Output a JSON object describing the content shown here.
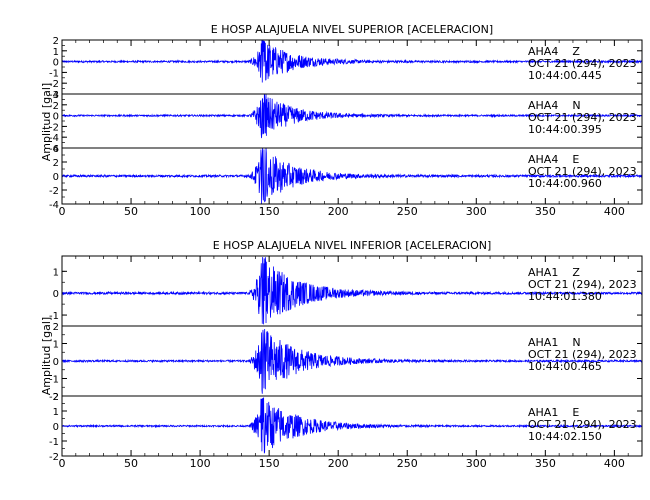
{
  "chart_data": [
    {
      "type": "line",
      "title": "E HOSP ALAJUELA NIVEL SUPERIOR [ACELERACION]",
      "ylabel": "Amplitud [gal]",
      "xlim": [
        0,
        420
      ],
      "xticks": [
        0,
        50,
        100,
        150,
        200,
        250,
        300,
        350,
        400
      ],
      "line_color": "#0000ff",
      "grid": false,
      "traces": [
        {
          "station": "AHA4",
          "component": "Z",
          "date": "OCT 21 (294), 2023",
          "time": "10:44:00.445",
          "ylim": [
            -3,
            2
          ],
          "yticks": [
            2,
            1,
            0,
            -1,
            -2,
            -3
          ],
          "baseline_noise": 0.08,
          "event_onset": 135,
          "peak_time": 146,
          "peak_amplitude": 2.0,
          "coda_end": 215
        },
        {
          "station": "AHA4",
          "component": "N",
          "date": "OCT 21 (294), 2023",
          "time": "10:44:00.395",
          "ylim": [
            -6,
            4
          ],
          "yticks": [
            4,
            2,
            0,
            -2,
            -4,
            -6
          ],
          "baseline_noise": 0.15,
          "event_onset": 135,
          "peak_time": 146,
          "peak_amplitude": 4.0,
          "coda_end": 215
        },
        {
          "station": "AHA4",
          "component": "E",
          "date": "OCT 21 (294), 2023",
          "time": "10:44:00.960",
          "ylim": [
            -4,
            4
          ],
          "yticks": [
            4,
            2,
            0,
            -2,
            -4
          ],
          "baseline_noise": 0.15,
          "event_onset": 135,
          "peak_time": 146,
          "peak_amplitude": 4.0,
          "coda_end": 215
        }
      ]
    },
    {
      "type": "line",
      "title": "E HOSP ALAJUELA NIVEL INFERIOR [ACELERACION]",
      "ylabel": "Amplitud [gal]",
      "xlim": [
        0,
        420
      ],
      "xticks": [
        0,
        50,
        100,
        150,
        200,
        250,
        300,
        350,
        400
      ],
      "line_color": "#0000ff",
      "grid": false,
      "traces": [
        {
          "station": "AHA1",
          "component": "Z",
          "date": "OCT 21 (294), 2023",
          "time": "10:44:01.380",
          "ylim": [
            -1.5,
            1.7
          ],
          "yticks": [
            1,
            0,
            -1
          ],
          "baseline_noise": 0.05,
          "event_onset": 135,
          "peak_time": 146,
          "peak_amplitude": 1.6,
          "coda_end": 225
        },
        {
          "station": "AHA1",
          "component": "N",
          "date": "OCT 21 (294), 2023",
          "time": "10:44:00.465",
          "ylim": [
            -2,
            2
          ],
          "yticks": [
            2,
            1,
            0,
            -1,
            -2
          ],
          "baseline_noise": 0.05,
          "event_onset": 135,
          "peak_time": 146,
          "peak_amplitude": 1.9,
          "coda_end": 225
        },
        {
          "station": "AHA1",
          "component": "E",
          "date": "OCT 21 (294), 2023",
          "time": "10:44:02.150",
          "ylim": [
            -2,
            2
          ],
          "yticks": [
            2,
            1,
            0,
            -1,
            -2
          ],
          "baseline_noise": 0.05,
          "event_onset": 135,
          "peak_time": 146,
          "peak_amplitude": 1.9,
          "coda_end": 225
        }
      ]
    }
  ]
}
